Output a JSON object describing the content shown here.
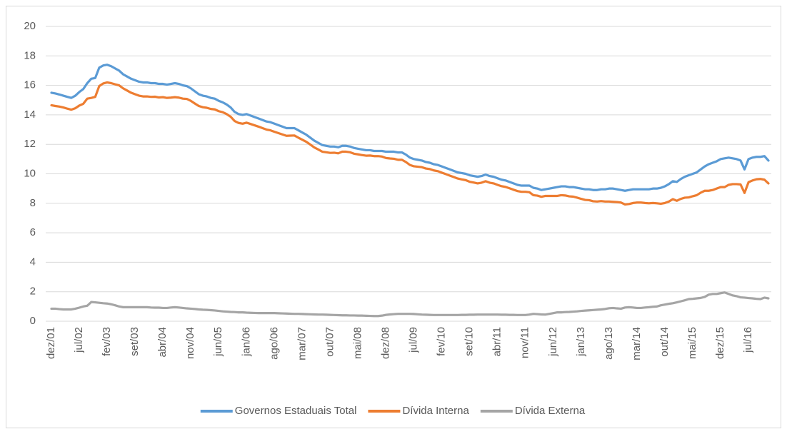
{
  "chart_data": {
    "type": "line",
    "categories": [
      "dez/01",
      null,
      null,
      null,
      null,
      null,
      null,
      "jul/02",
      null,
      null,
      null,
      null,
      null,
      null,
      "fev/03",
      null,
      null,
      null,
      null,
      null,
      null,
      "set/03",
      null,
      null,
      null,
      null,
      null,
      null,
      "abr/04",
      null,
      null,
      null,
      null,
      null,
      null,
      "nov/04",
      null,
      null,
      null,
      null,
      null,
      null,
      "jun/05",
      null,
      null,
      null,
      null,
      null,
      null,
      "jan/06",
      null,
      null,
      null,
      null,
      null,
      null,
      "ago/06",
      null,
      null,
      null,
      null,
      null,
      null,
      "mar/07",
      null,
      null,
      null,
      null,
      null,
      null,
      "out/07",
      null,
      null,
      null,
      null,
      null,
      null,
      "mai/08",
      null,
      null,
      null,
      null,
      null,
      null,
      "dez/08",
      null,
      null,
      null,
      null,
      null,
      null,
      "jul/09",
      null,
      null,
      null,
      null,
      null,
      null,
      "fev/10",
      null,
      null,
      null,
      null,
      null,
      null,
      "set/10",
      null,
      null,
      null,
      null,
      null,
      null,
      "abr/11",
      null,
      null,
      null,
      null,
      null,
      null,
      "nov/11",
      null,
      null,
      null,
      null,
      null,
      null,
      "jun/12",
      null,
      null,
      null,
      null,
      null,
      null,
      "jan/13",
      null,
      null,
      null,
      null,
      null,
      null,
      "ago/13",
      null,
      null,
      null,
      null,
      null,
      null,
      "mar/14",
      null,
      null,
      null,
      null,
      null,
      null,
      "out/14",
      null,
      null,
      null,
      null,
      null,
      null,
      "mai/15",
      null,
      null,
      null,
      null,
      null,
      null,
      "dez/15",
      null,
      null,
      null,
      null,
      null,
      null,
      "jul/16",
      null,
      null,
      null,
      null,
      null
    ],
    "series": [
      {
        "name": "Governos Estaduais Total",
        "color": "#5b9bd5",
        "values": [
          15.5,
          15.45,
          15.38,
          15.3,
          15.22,
          15.15,
          15.3,
          15.55,
          15.75,
          16.15,
          16.45,
          16.5,
          17.2,
          17.35,
          17.4,
          17.3,
          17.15,
          17.0,
          16.75,
          16.6,
          16.45,
          16.35,
          16.25,
          16.2,
          16.2,
          16.15,
          16.15,
          16.1,
          16.1,
          16.05,
          16.1,
          16.15,
          16.1,
          16.0,
          15.95,
          15.8,
          15.6,
          15.4,
          15.3,
          15.25,
          15.15,
          15.1,
          14.95,
          14.85,
          14.7,
          14.5,
          14.2,
          14.05,
          14.0,
          14.05,
          13.95,
          13.85,
          13.75,
          13.65,
          13.55,
          13.5,
          13.4,
          13.3,
          13.2,
          13.1,
          13.1,
          13.1,
          12.95,
          12.8,
          12.65,
          12.45,
          12.25,
          12.1,
          11.95,
          11.9,
          11.85,
          11.85,
          11.8,
          11.9,
          11.9,
          11.85,
          11.75,
          11.7,
          11.65,
          11.6,
          11.6,
          11.55,
          11.55,
          11.55,
          11.5,
          11.5,
          11.5,
          11.45,
          11.45,
          11.3,
          11.1,
          11.0,
          10.95,
          10.9,
          10.8,
          10.75,
          10.65,
          10.6,
          10.5,
          10.4,
          10.3,
          10.2,
          10.1,
          10.05,
          10.0,
          9.9,
          9.85,
          9.8,
          9.85,
          9.95,
          9.85,
          9.8,
          9.7,
          9.6,
          9.55,
          9.45,
          9.35,
          9.25,
          9.2,
          9.2,
          9.2,
          9.05,
          9.0,
          8.9,
          8.95,
          9.0,
          9.05,
          9.1,
          9.15,
          9.15,
          9.1,
          9.1,
          9.05,
          9.0,
          8.95,
          8.95,
          8.9,
          8.9,
          8.95,
          8.95,
          9.0,
          9.0,
          8.95,
          8.9,
          8.85,
          8.9,
          8.95,
          8.95,
          8.95,
          8.95,
          8.95,
          9.0,
          9.0,
          9.05,
          9.15,
          9.3,
          9.5,
          9.45,
          9.65,
          9.8,
          9.9,
          10.0,
          10.1,
          10.3,
          10.5,
          10.65,
          10.75,
          10.85,
          11.0,
          11.05,
          11.1,
          11.05,
          11.0,
          10.9,
          10.3,
          11.0,
          11.1,
          11.15,
          11.15,
          11.2,
          10.9
        ]
      },
      {
        "name": "Dívida Interna",
        "color": "#ed7d31",
        "values": [
          14.65,
          14.6,
          14.56,
          14.5,
          14.42,
          14.35,
          14.45,
          14.63,
          14.75,
          15.1,
          15.15,
          15.22,
          15.95,
          16.13,
          16.2,
          16.15,
          16.07,
          16.0,
          15.8,
          15.65,
          15.5,
          15.4,
          15.3,
          15.25,
          15.25,
          15.22,
          15.23,
          15.18,
          15.2,
          15.15,
          15.17,
          15.2,
          15.17,
          15.1,
          15.08,
          14.95,
          14.77,
          14.6,
          14.52,
          14.48,
          14.4,
          14.37,
          14.25,
          14.18,
          14.05,
          13.87,
          13.58,
          13.45,
          13.4,
          13.47,
          13.38,
          13.29,
          13.2,
          13.1,
          13.0,
          12.95,
          12.85,
          12.76,
          12.67,
          12.58,
          12.59,
          12.6,
          12.45,
          12.31,
          12.17,
          11.98,
          11.79,
          11.65,
          11.5,
          11.46,
          11.42,
          11.43,
          11.39,
          11.5,
          11.5,
          11.46,
          11.36,
          11.32,
          11.27,
          11.23,
          11.24,
          11.2,
          11.2,
          11.17,
          11.07,
          11.04,
          11.02,
          10.95,
          10.95,
          10.8,
          10.6,
          10.51,
          10.48,
          10.45,
          10.36,
          10.32,
          10.23,
          10.18,
          10.08,
          9.98,
          9.88,
          9.78,
          9.68,
          9.62,
          9.57,
          9.46,
          9.41,
          9.35,
          9.4,
          9.5,
          9.4,
          9.35,
          9.25,
          9.16,
          9.11,
          9.02,
          8.92,
          8.83,
          8.78,
          8.78,
          8.75,
          8.55,
          8.52,
          8.44,
          8.5,
          8.5,
          8.5,
          8.5,
          8.55,
          8.53,
          8.47,
          8.45,
          8.38,
          8.3,
          8.23,
          8.21,
          8.14,
          8.12,
          8.15,
          8.12,
          8.12,
          8.1,
          8.08,
          8.05,
          7.92,
          7.95,
          8.02,
          8.05,
          8.05,
          8.02,
          8.0,
          8.02,
          8.0,
          7.97,
          8.02,
          8.12,
          8.28,
          8.17,
          8.3,
          8.38,
          8.4,
          8.48,
          8.55,
          8.72,
          8.85,
          8.85,
          8.9,
          9.0,
          9.1,
          9.1,
          9.25,
          9.3,
          9.3,
          9.28,
          8.7,
          9.43,
          9.55,
          9.63,
          9.65,
          9.6,
          9.35
        ]
      },
      {
        "name": "Dívida Externa",
        "color": "#a5a5a5",
        "values": [
          0.85,
          0.85,
          0.82,
          0.8,
          0.8,
          0.8,
          0.85,
          0.92,
          1.0,
          1.05,
          1.3,
          1.28,
          1.25,
          1.22,
          1.2,
          1.15,
          1.08,
          1.0,
          0.95,
          0.95,
          0.95,
          0.95,
          0.95,
          0.95,
          0.95,
          0.93,
          0.92,
          0.92,
          0.9,
          0.9,
          0.93,
          0.95,
          0.93,
          0.9,
          0.87,
          0.85,
          0.83,
          0.8,
          0.78,
          0.77,
          0.75,
          0.73,
          0.7,
          0.67,
          0.65,
          0.63,
          0.62,
          0.6,
          0.6,
          0.58,
          0.57,
          0.56,
          0.55,
          0.55,
          0.55,
          0.55,
          0.55,
          0.54,
          0.53,
          0.52,
          0.51,
          0.5,
          0.5,
          0.49,
          0.48,
          0.47,
          0.46,
          0.45,
          0.45,
          0.44,
          0.43,
          0.42,
          0.41,
          0.4,
          0.4,
          0.39,
          0.39,
          0.38,
          0.38,
          0.37,
          0.36,
          0.35,
          0.35,
          0.38,
          0.43,
          0.46,
          0.48,
          0.5,
          0.5,
          0.5,
          0.5,
          0.49,
          0.47,
          0.45,
          0.44,
          0.43,
          0.42,
          0.42,
          0.42,
          0.42,
          0.42,
          0.42,
          0.42,
          0.43,
          0.43,
          0.44,
          0.44,
          0.45,
          0.45,
          0.45,
          0.45,
          0.45,
          0.45,
          0.44,
          0.44,
          0.43,
          0.43,
          0.42,
          0.42,
          0.42,
          0.45,
          0.5,
          0.48,
          0.46,
          0.45,
          0.5,
          0.55,
          0.6,
          0.6,
          0.62,
          0.63,
          0.65,
          0.67,
          0.7,
          0.72,
          0.74,
          0.76,
          0.78,
          0.8,
          0.83,
          0.88,
          0.9,
          0.87,
          0.85,
          0.93,
          0.95,
          0.93,
          0.9,
          0.9,
          0.93,
          0.95,
          0.98,
          1.0,
          1.08,
          1.13,
          1.18,
          1.22,
          1.28,
          1.35,
          1.42,
          1.5,
          1.52,
          1.55,
          1.58,
          1.65,
          1.8,
          1.85,
          1.85,
          1.9,
          1.95,
          1.85,
          1.75,
          1.7,
          1.62,
          1.6,
          1.57,
          1.55,
          1.52,
          1.5,
          1.6,
          1.55
        ]
      }
    ],
    "ylim": [
      0,
      20
    ],
    "yticks": [
      0,
      2,
      4,
      6,
      8,
      10,
      12,
      14,
      16,
      18,
      20
    ],
    "grid": true,
    "legend": "bottom"
  }
}
